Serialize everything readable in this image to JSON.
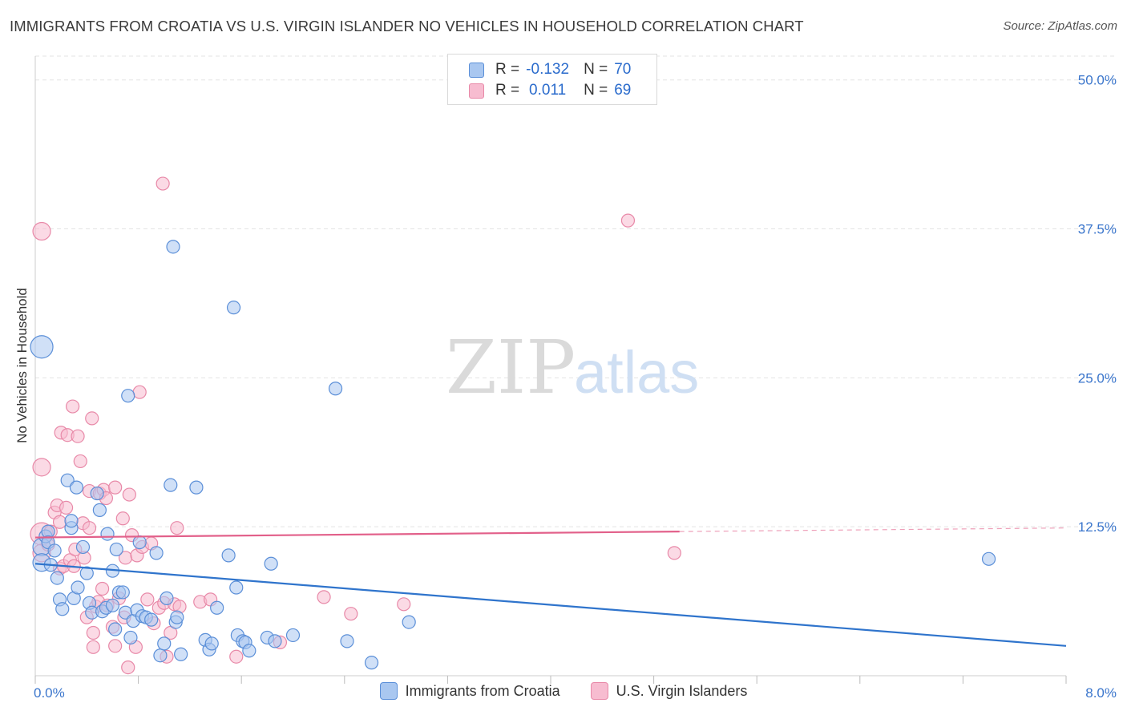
{
  "title": "IMMIGRANTS FROM CROATIA VS U.S. VIRGIN ISLANDER NO VEHICLES IN HOUSEHOLD CORRELATION CHART",
  "source": "Source: ZipAtlas.com",
  "watermark": {
    "zip": "ZIP",
    "atlas": "atlas"
  },
  "legend_top": {
    "rows": [
      {
        "r_label": "R =",
        "r_value": "-0.132",
        "n_label": "N =",
        "n_value": "70"
      },
      {
        "r_label": "R =",
        "r_value": "0.011",
        "n_label": "N =",
        "n_value": "69"
      }
    ]
  },
  "legend_bottom": {
    "series_a": "Immigrants from Croatia",
    "series_b": "U.S. Virgin Islanders"
  },
  "colors": {
    "series_a_fill": "#a9c7f0",
    "series_a_stroke": "#5b8fd8",
    "series_a_line": "#2f74cc",
    "series_b_fill": "#f7bcd0",
    "series_b_stroke": "#e889a8",
    "series_b_line": "#e2608a",
    "tick_label": "#3b76cc",
    "grid": "#e3e3e3"
  },
  "chart_data": {
    "type": "scatter",
    "title": "IMMIGRANTS FROM CROATIA VS U.S. VIRGIN ISLANDER NO VEHICLES IN HOUSEHOLD CORRELATION CHART",
    "xlabel": "",
    "ylabel": "No Vehicles in Household",
    "xlim": [
      0,
      8
    ],
    "ylim": [
      0,
      52
    ],
    "x_tick_labels": [
      {
        "value": 0,
        "label": "0.0%"
      },
      {
        "value": 8,
        "label": "8.0%"
      }
    ],
    "y_tick_labels": [
      {
        "value": 12.5,
        "label": "12.5%"
      },
      {
        "value": 25,
        "label": "25.0%"
      },
      {
        "value": 37.5,
        "label": "37.5%"
      },
      {
        "value": 50,
        "label": "50.0%"
      }
    ],
    "grid": true,
    "legend_position": "top-center",
    "series": [
      {
        "name": "Immigrants from Croatia",
        "R": -0.132,
        "N": 70,
        "trend": {
          "x": [
            0,
            8
          ],
          "y": [
            9.4,
            2.5
          ]
        },
        "points": [
          [
            0.05,
            27.6,
            3
          ],
          [
            0.05,
            10.8,
            2
          ],
          [
            0.05,
            9.5,
            2
          ],
          [
            0.08,
            11.7,
            1
          ],
          [
            0.1,
            12.1,
            1
          ],
          [
            0.1,
            11.2,
            1
          ],
          [
            0.12,
            9.3,
            1
          ],
          [
            0.15,
            10.5,
            1
          ],
          [
            0.17,
            8.2,
            1
          ],
          [
            0.19,
            6.4,
            1
          ],
          [
            0.21,
            5.6,
            1
          ],
          [
            0.25,
            16.4,
            1
          ],
          [
            0.28,
            12.4,
            1
          ],
          [
            0.28,
            13.0,
            1
          ],
          [
            0.3,
            6.5,
            1
          ],
          [
            0.32,
            15.8,
            1
          ],
          [
            0.33,
            7.4,
            1
          ],
          [
            0.37,
            10.8,
            1
          ],
          [
            0.4,
            8.6,
            1
          ],
          [
            0.42,
            6.1,
            1
          ],
          [
            0.44,
            5.3,
            1
          ],
          [
            0.48,
            15.3,
            1
          ],
          [
            0.5,
            13.9,
            1
          ],
          [
            0.52,
            5.4,
            1
          ],
          [
            0.55,
            5.7,
            1
          ],
          [
            0.56,
            11.9,
            1
          ],
          [
            0.6,
            5.9,
            1
          ],
          [
            0.6,
            8.8,
            1
          ],
          [
            0.62,
            3.9,
            1
          ],
          [
            0.63,
            10.6,
            1
          ],
          [
            0.65,
            7.0,
            1
          ],
          [
            0.68,
            7.0,
            1
          ],
          [
            0.7,
            5.3,
            1
          ],
          [
            0.72,
            23.5,
            1
          ],
          [
            0.74,
            3.2,
            1
          ],
          [
            0.76,
            4.6,
            1
          ],
          [
            0.79,
            5.5,
            1
          ],
          [
            0.81,
            11.2,
            1
          ],
          [
            0.83,
            5.0,
            1
          ],
          [
            0.86,
            4.9,
            1
          ],
          [
            0.9,
            4.7,
            1
          ],
          [
            0.94,
            10.3,
            1
          ],
          [
            0.97,
            1.7,
            1
          ],
          [
            1.0,
            2.7,
            1
          ],
          [
            1.02,
            6.5,
            1
          ],
          [
            1.05,
            16.0,
            1
          ],
          [
            1.07,
            36.0,
            1
          ],
          [
            1.09,
            4.5,
            1
          ],
          [
            1.1,
            4.9,
            1
          ],
          [
            1.13,
            1.8,
            1
          ],
          [
            1.25,
            15.8,
            1
          ],
          [
            1.32,
            3.0,
            1
          ],
          [
            1.35,
            2.2,
            1
          ],
          [
            1.37,
            2.7,
            1
          ],
          [
            1.41,
            5.7,
            1
          ],
          [
            1.5,
            10.1,
            1
          ],
          [
            1.54,
            30.9,
            1
          ],
          [
            1.56,
            7.4,
            1
          ],
          [
            1.57,
            3.4,
            1
          ],
          [
            1.61,
            2.9,
            1
          ],
          [
            1.63,
            2.8,
            1
          ],
          [
            1.66,
            2.1,
            1
          ],
          [
            1.8,
            3.2,
            1
          ],
          [
            1.83,
            9.4,
            1
          ],
          [
            1.86,
            2.9,
            1
          ],
          [
            2.0,
            3.4,
            1
          ],
          [
            2.42,
            2.9,
            1
          ],
          [
            2.33,
            24.1,
            1
          ],
          [
            2.61,
            1.1,
            1
          ],
          [
            2.9,
            4.5,
            1
          ],
          [
            7.4,
            9.8,
            1
          ]
        ]
      },
      {
        "name": "U.S. Virgin Islanders",
        "R": 0.011,
        "N": 69,
        "trend": {
          "x": [
            0,
            5.0
          ],
          "y": [
            11.6,
            12.1
          ],
          "dashed_to": [
            8,
            12.4
          ]
        },
        "points": [
          [
            0.05,
            37.3,
            2
          ],
          [
            0.05,
            17.5,
            2
          ],
          [
            0.05,
            11.9,
            3
          ],
          [
            0.05,
            10.3,
            2
          ],
          [
            0.1,
            11.0,
            1
          ],
          [
            0.12,
            12.1,
            1
          ],
          [
            0.15,
            13.7,
            1
          ],
          [
            0.17,
            14.3,
            1
          ],
          [
            0.19,
            12.9,
            1
          ],
          [
            0.19,
            9.0,
            1
          ],
          [
            0.2,
            20.4,
            1
          ],
          [
            0.22,
            9.2,
            1
          ],
          [
            0.24,
            14.1,
            1
          ],
          [
            0.25,
            20.2,
            1
          ],
          [
            0.27,
            9.7,
            1
          ],
          [
            0.29,
            22.6,
            1
          ],
          [
            0.3,
            9.2,
            1
          ],
          [
            0.31,
            10.6,
            1
          ],
          [
            0.33,
            20.1,
            1
          ],
          [
            0.35,
            18.0,
            1
          ],
          [
            0.37,
            12.8,
            1
          ],
          [
            0.38,
            9.9,
            1
          ],
          [
            0.4,
            4.9,
            1
          ],
          [
            0.42,
            15.5,
            1
          ],
          [
            0.42,
            12.4,
            1
          ],
          [
            0.44,
            21.6,
            1
          ],
          [
            0.45,
            3.6,
            1
          ],
          [
            0.45,
            2.4,
            1
          ],
          [
            0.47,
            5.8,
            1
          ],
          [
            0.49,
            6.2,
            1
          ],
          [
            0.5,
            15.3,
            1
          ],
          [
            0.52,
            7.3,
            1
          ],
          [
            0.53,
            15.6,
            1
          ],
          [
            0.55,
            14.9,
            1
          ],
          [
            0.56,
            5.9,
            1
          ],
          [
            0.6,
            4.1,
            1
          ],
          [
            0.62,
            15.8,
            1
          ],
          [
            0.62,
            2.5,
            1
          ],
          [
            0.65,
            6.5,
            1
          ],
          [
            0.68,
            13.2,
            1
          ],
          [
            0.69,
            4.9,
            1
          ],
          [
            0.7,
            9.9,
            1
          ],
          [
            0.72,
            0.7,
            1
          ],
          [
            0.73,
            15.2,
            1
          ],
          [
            0.75,
            11.8,
            1
          ],
          [
            0.78,
            2.4,
            1
          ],
          [
            0.79,
            10.1,
            1
          ],
          [
            0.81,
            23.8,
            1
          ],
          [
            0.83,
            10.8,
            1
          ],
          [
            0.87,
            6.4,
            1
          ],
          [
            0.9,
            11.1,
            1
          ],
          [
            0.92,
            4.4,
            1
          ],
          [
            0.96,
            5.7,
            1
          ],
          [
            0.99,
            41.3,
            1
          ],
          [
            1.0,
            6.1,
            1
          ],
          [
            1.02,
            1.6,
            1
          ],
          [
            1.05,
            3.6,
            1
          ],
          [
            1.08,
            6.0,
            1
          ],
          [
            1.1,
            12.4,
            1
          ],
          [
            1.12,
            5.8,
            1
          ],
          [
            1.28,
            6.2,
            1
          ],
          [
            1.36,
            6.4,
            1
          ],
          [
            1.56,
            1.6,
            1
          ],
          [
            1.9,
            2.8,
            1
          ],
          [
            2.24,
            6.6,
            1
          ],
          [
            2.45,
            5.2,
            1
          ],
          [
            2.86,
            6.0,
            1
          ],
          [
            4.6,
            38.2,
            1
          ],
          [
            4.96,
            10.3,
            1
          ]
        ]
      }
    ]
  }
}
